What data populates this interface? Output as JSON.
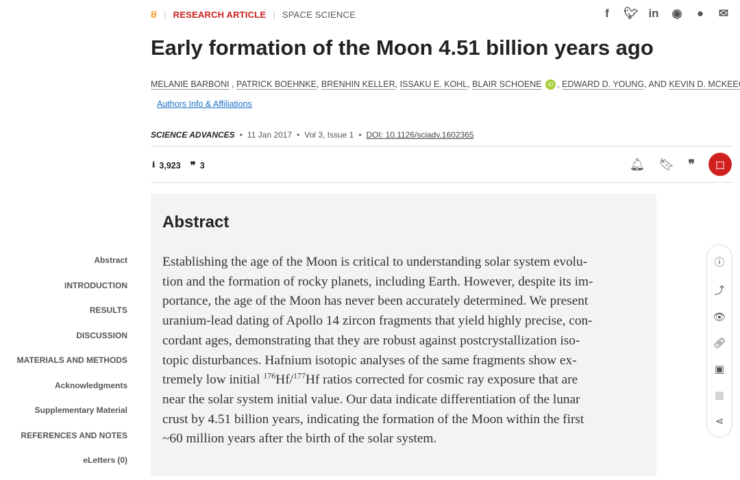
{
  "header": {
    "open_access_icon": "open-access-icon",
    "article_type": "RESEARCH ARTICLE",
    "section": "SPACE SCIENCE",
    "share_icons": [
      "facebook-icon",
      "twitter-icon",
      "linkedin-icon",
      "reddit-icon",
      "wechat-icon",
      "email-icon"
    ]
  },
  "title": "Early formation of the Moon 4.51 billion years ago",
  "authors": [
    "MELANIE BARBONI",
    "PATRICK BOEHNKE",
    "BRENHIN KELLER",
    "ISSAKU E. KOHL",
    "BLAIR SCHOENE",
    "EDWARD D. YOUNG",
    "KEVIN D. MCKEEGAN"
  ],
  "authors_and": "AND",
  "orcid_label": "iD",
  "affiliations_link": "Authors Info & Affiliations",
  "meta": {
    "journal": "SCIENCE ADVANCES",
    "date": "11 Jan 2017",
    "volume": "Vol 3, Issue 1",
    "doi": "DOI: 10.1126/sciadv.1602365"
  },
  "stats": {
    "downloads": "3,923",
    "citations": "3"
  },
  "abstract": {
    "heading": "Abstract",
    "lines": [
      "Establishing the age of the Moon is critical to understanding solar system evolu-",
      "tion and the formation of rocky planets, including Earth. However, despite its im-",
      "portance, the age of the Moon has never been accurately determined. We present",
      "uranium-lead dating of Apollo 14 zircon fragments that yield highly precise, con-",
      "cordant ages, demonstrating that they are robust against postcrystallization iso-",
      "topic disturbances. Hafnium isotopic analyses of the same fragments show ex-"
    ],
    "line7": {
      "a": "tremely low initial ",
      "sup1": "176",
      "b": "Hf/",
      "sup2": "177",
      "c": "Hf ratios corrected for cosmic ray exposure that are"
    },
    "lines_end": [
      "near the solar system initial value. Our data indicate differentiation of the lunar",
      "crust by 4.51 billion years, indicating the formation of the Moon within the first",
      "~60 million years after the birth of the solar system."
    ]
  },
  "toc": [
    "Abstract",
    "INTRODUCTION",
    "RESULTS",
    "DISCUSSION",
    "MATERIALS AND METHODS",
    "Acknowledgments",
    "Supplementary Material",
    "REFERENCES AND NOTES",
    "eLetters (0)"
  ],
  "rail_icons": [
    "info-icon",
    "trending-icon",
    "eye-icon",
    "link-icon",
    "images-icon",
    "table-icon",
    "share-icon"
  ],
  "colors": {
    "accent": "#c9211e",
    "link": "#1a6ec6",
    "orcid": "#a6ce39",
    "open_access": "#f7931e"
  }
}
